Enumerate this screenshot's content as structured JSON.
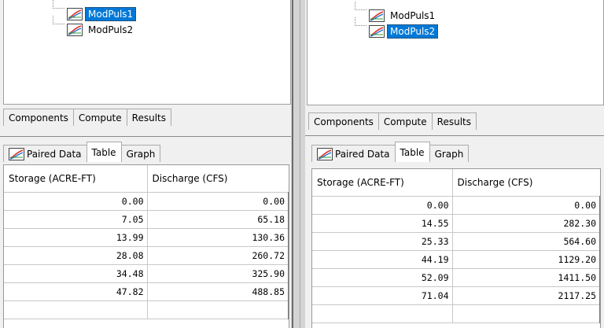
{
  "left": {
    "tree": {
      "items": [
        "ModPuls1",
        "ModPuls2"
      ]
    },
    "top_tabs": [
      "Components",
      "Compute",
      "Results"
    ],
    "sub_tabs": [
      "Paired Data",
      "Table",
      "Graph"
    ],
    "table": {
      "headers": [
        "Storage (ACRE-FT)",
        "Discharge (CFS)"
      ],
      "rows": [
        [
          "0.00",
          "0.00"
        ],
        [
          "7.05",
          "65.18"
        ],
        [
          "13.99",
          "130.36"
        ],
        [
          "28.08",
          "260.72"
        ],
        [
          "34.48",
          "325.90"
        ],
        [
          "47.82",
          "488.85"
        ]
      ]
    }
  },
  "right": {
    "tree": {
      "items": [
        "ModPuls1",
        "ModPuls2"
      ]
    },
    "top_tabs": [
      "Components",
      "Compute",
      "Results"
    ],
    "sub_tabs": [
      "Paired Data",
      "Table",
      "Graph"
    ],
    "table": {
      "headers": [
        "Storage (ACRE-FT)",
        "Discharge (CFS)"
      ],
      "rows": [
        [
          "0.00",
          "0.00"
        ],
        [
          "14.55",
          "282.30"
        ],
        [
          "25.33",
          "564.60"
        ],
        [
          "44.19",
          "1129.20"
        ],
        [
          "52.09",
          "1411.50"
        ],
        [
          "71.04",
          "2117.25"
        ]
      ]
    }
  },
  "icons": {
    "curve": "paired-data-curve-icon"
  },
  "colors": {
    "selection": "#0078d7",
    "curve_red": "#d93025",
    "curve_blue": "#1e6fd9",
    "curve_green": "#2e9c3a"
  }
}
